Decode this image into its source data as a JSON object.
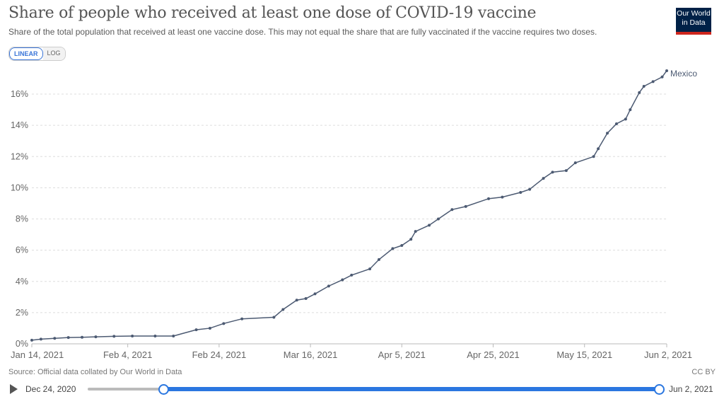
{
  "header": {
    "title": "Share of people who received at least one dose of COVID-19 vaccine",
    "subtitle": "Share of the total population that received at least one vaccine dose. This may not equal the share that are fully vaccinated if the vaccine requires two doses.",
    "logo": "Our World in Data"
  },
  "scale_toggle": {
    "linear": "LINEAR",
    "log": "LOG",
    "selected": "LINEAR"
  },
  "footer": {
    "source": "Source: Official data collated by Our World in Data",
    "license": "CC BY"
  },
  "timeline": {
    "start_label": "Dec 24, 2020",
    "end_label": "Jun 2, 2021",
    "play_icon": "play-icon",
    "accent": "#2b77e0"
  },
  "chart_data": {
    "type": "line",
    "title": "Share of people who received at least one dose of COVID-19 vaccine",
    "xlim": [
      "2021-01-14",
      "2021-06-02"
    ],
    "ylim": [
      0,
      17.5
    ],
    "y_ticks": [
      "0%",
      "2%",
      "4%",
      "6%",
      "8%",
      "10%",
      "12%",
      "14%",
      "16%"
    ],
    "y_tick_values": [
      0,
      2,
      4,
      6,
      8,
      10,
      12,
      14,
      16
    ],
    "x_ticks": [
      "Jan 14, 2021",
      "Feb 4, 2021",
      "Feb 24, 2021",
      "Mar 16, 2021",
      "Apr 5, 2021",
      "Apr 25, 2021",
      "May 15, 2021",
      "Jun 2, 2021"
    ],
    "x_tick_dates": [
      "2021-01-14",
      "2021-02-04",
      "2021-02-24",
      "2021-03-16",
      "2021-04-05",
      "2021-04-25",
      "2021-05-15",
      "2021-06-02"
    ],
    "grid": "horizontal dashed",
    "series": [
      {
        "name": "Mexico",
        "color": "#4c5a72",
        "points": [
          [
            "2021-01-14",
            0.23
          ],
          [
            "2021-01-16",
            0.3
          ],
          [
            "2021-01-19",
            0.35
          ],
          [
            "2021-01-22",
            0.4
          ],
          [
            "2021-01-25",
            0.42
          ],
          [
            "2021-01-28",
            0.45
          ],
          [
            "2021-02-01",
            0.48
          ],
          [
            "2021-02-05",
            0.5
          ],
          [
            "2021-02-10",
            0.5
          ],
          [
            "2021-02-14",
            0.5
          ],
          [
            "2021-02-19",
            0.9
          ],
          [
            "2021-02-22",
            1.0
          ],
          [
            "2021-02-25",
            1.3
          ],
          [
            "2021-03-01",
            1.6
          ],
          [
            "2021-03-08",
            1.7
          ],
          [
            "2021-03-10",
            2.2
          ],
          [
            "2021-03-13",
            2.8
          ],
          [
            "2021-03-15",
            2.9
          ],
          [
            "2021-03-17",
            3.2
          ],
          [
            "2021-03-20",
            3.7
          ],
          [
            "2021-03-23",
            4.1
          ],
          [
            "2021-03-25",
            4.4
          ],
          [
            "2021-03-29",
            4.8
          ],
          [
            "2021-03-31",
            5.4
          ],
          [
            "2021-04-03",
            6.1
          ],
          [
            "2021-04-05",
            6.3
          ],
          [
            "2021-04-07",
            6.7
          ],
          [
            "2021-04-08",
            7.2
          ],
          [
            "2021-04-11",
            7.6
          ],
          [
            "2021-04-13",
            8.0
          ],
          [
            "2021-04-16",
            8.6
          ],
          [
            "2021-04-19",
            8.8
          ],
          [
            "2021-04-24",
            9.3
          ],
          [
            "2021-04-27",
            9.4
          ],
          [
            "2021-05-01",
            9.7
          ],
          [
            "2021-05-03",
            9.9
          ],
          [
            "2021-05-06",
            10.6
          ],
          [
            "2021-05-08",
            11.0
          ],
          [
            "2021-05-11",
            11.1
          ],
          [
            "2021-05-13",
            11.6
          ],
          [
            "2021-05-17",
            12.0
          ],
          [
            "2021-05-18",
            12.5
          ],
          [
            "2021-05-20",
            13.5
          ],
          [
            "2021-05-22",
            14.1
          ],
          [
            "2021-05-24",
            14.4
          ],
          [
            "2021-05-25",
            15.0
          ],
          [
            "2021-05-27",
            16.1
          ],
          [
            "2021-05-28",
            16.5
          ],
          [
            "2021-05-30",
            16.8
          ],
          [
            "2021-06-01",
            17.1
          ],
          [
            "2021-06-02",
            17.5
          ]
        ]
      }
    ]
  }
}
